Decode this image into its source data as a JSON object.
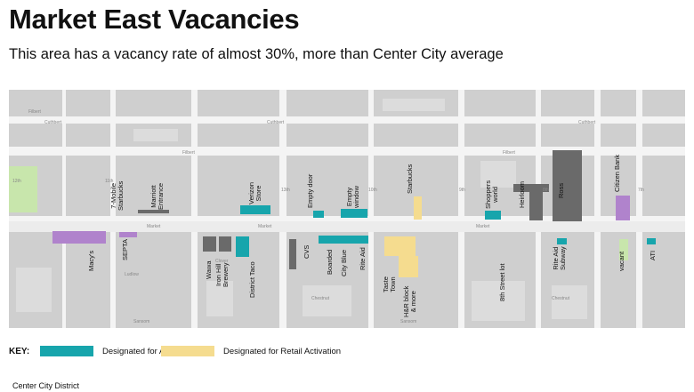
{
  "title": "Market East Vacancies",
  "subtitle": "This area has a vacancy rate of almost 30%, more than Center City average",
  "colors": {
    "art": "#17a5ac",
    "retail": "#f5dc8f",
    "vacant_dark": "#6a6a6a",
    "purple": "#b083cc",
    "green": "#c8e6ac",
    "building": "#cfcfcf",
    "street": "#f4f4f4"
  },
  "map": {
    "street_names": [
      "Market",
      "Market",
      "Market",
      "Filbert",
      "Filbert",
      "Filbert",
      "Ludlow",
      "Chestnut",
      "Chestnut",
      "Clover",
      "Sansom",
      "Sansom",
      "Cuthbert",
      "Cuthbert",
      "Cuthbert",
      "11th",
      "12th",
      "13th",
      "10th",
      "9th",
      "8th",
      "7th"
    ],
    "labels": [
      "7-Mobile\nStarbucks",
      "Marriott\nEntrance",
      "Verizon\nStore",
      "Empty door",
      "Empty\nwindow",
      "Starbucks",
      "Shoppers\nworld",
      "Heirloom",
      "Ross",
      "Citizen Bank",
      "Macy's",
      "SEPTA",
      "Wawa",
      "Iron Hill\nBrewery",
      "District Taco",
      "CVS",
      "Boarded",
      "City Blue",
      "Rite Aid",
      "Taste\nTown",
      "H&R block\n& more",
      "8th Street lot",
      "Rite Aid\nSubway",
      "vacant",
      "ATI"
    ]
  },
  "legend": {
    "key_label": "KEY:",
    "items": [
      {
        "label": "Designated for Art",
        "color": "#17a5ac"
      },
      {
        "label": "Designated for Retail Activation",
        "color": "#f5dc8f"
      }
    ]
  },
  "source": "Center City District"
}
